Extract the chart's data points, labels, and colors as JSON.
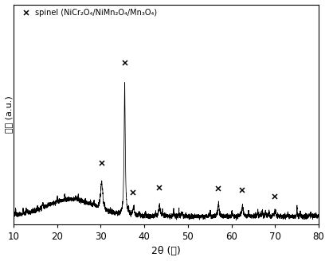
{
  "xmin": 10,
  "xmax": 80,
  "xlabel": "2θ (度)",
  "ylabel": "强度 (a.u.)",
  "xticks": [
    10,
    20,
    30,
    40,
    50,
    60,
    70,
    80
  ],
  "legend_label": "spinel (NiCr₂O₄/NiMn₂O₄/Mn₃O₄)",
  "marker_positions_x": [
    30.2,
    35.5,
    37.5,
    43.5,
    57.0,
    62.5,
    70.0
  ],
  "background_color": "#ffffff",
  "line_color": "#000000",
  "seed": 42
}
